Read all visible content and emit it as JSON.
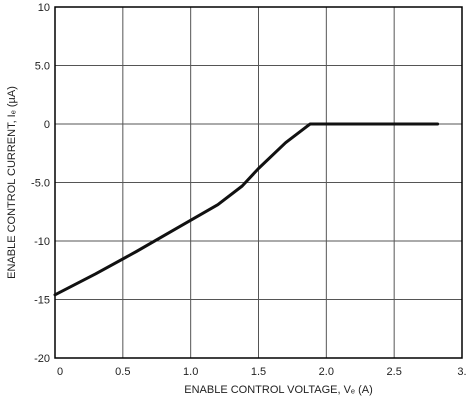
{
  "chart_data": {
    "type": "line",
    "title": "",
    "xlabel": "ENABLE CONTROL VOLTAGE, Vₑ (A)",
    "ylabel": "ENABLE CONTROL CURRENT, Iₑ (µA)",
    "xlim": [
      0,
      3.0
    ],
    "ylim": [
      -20,
      10
    ],
    "x_ticks": [
      0,
      0.5,
      1.0,
      1.5,
      2.0,
      2.5,
      3.0
    ],
    "x_tick_labels": [
      "0",
      "0.5",
      "1.0",
      "1.5",
      "2.0",
      "2.5",
      "3."
    ],
    "y_ticks": [
      10,
      5,
      0,
      -5,
      -10,
      -15,
      -20
    ],
    "y_tick_labels": [
      "10",
      "5.0",
      "0",
      "-5.0",
      "-10",
      "-15",
      "-20"
    ],
    "grid": true,
    "series": [
      {
        "x": [
          0.0,
          0.3,
          0.6,
          0.9,
          1.2,
          1.38,
          1.5,
          1.7,
          1.88,
          1.95,
          2.2,
          2.5,
          2.75,
          2.82
        ],
        "y": [
          -14.6,
          -12.8,
          -10.9,
          -8.9,
          -6.9,
          -5.3,
          -3.8,
          -1.6,
          0.0,
          0.0,
          0.0,
          0.0,
          0.0,
          0.0
        ]
      }
    ],
    "colors": {
      "line": "#111111",
      "grid": "#555555",
      "frame": "#000000"
    }
  }
}
